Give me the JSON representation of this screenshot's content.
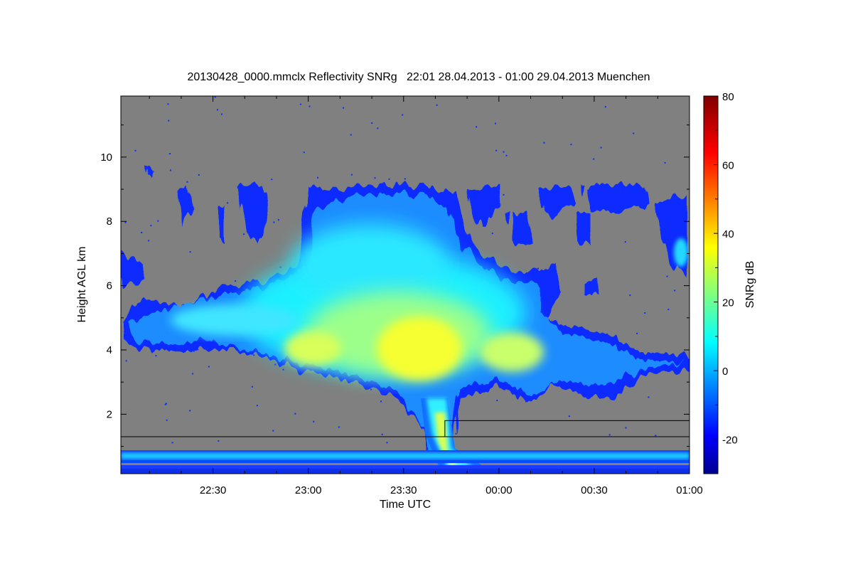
{
  "chart_data": {
    "type": "heatmap",
    "title": "20130428_0000.mmclx Reflectivity SNRg   22:01 28.04.2013 - 01:00 29.04.2013 Muenchen",
    "xlabel": "Time UTC",
    "ylabel": "Height AGL km",
    "colorbar_label": "SNRg dB",
    "x_range": [
      "22:01",
      "01:00"
    ],
    "x_ticks": [
      {
        "label": "22:30",
        "minutes": 30
      },
      {
        "label": "23:00",
        "minutes": 60
      },
      {
        "label": "23:30",
        "minutes": 90
      },
      {
        "label": "00:00",
        "minutes": 120
      },
      {
        "label": "00:30",
        "minutes": 150
      },
      {
        "label": "01:00",
        "minutes": 180
      }
    ],
    "y_range": [
      0.15,
      11.9
    ],
    "y_ticks": [
      2,
      4,
      6,
      8,
      10
    ],
    "colorbar_range": [
      -30,
      80
    ],
    "colorbar_ticks": [
      -20,
      0,
      20,
      40,
      60,
      80
    ],
    "colormap": [
      "#00008f",
      "#0000ff",
      "#00ffff",
      "#ffff00",
      "#ff0000",
      "#800000"
    ],
    "background_color": "#808080",
    "overlay_lines_km": [
      1.3,
      1.8
    ],
    "grid": false
  }
}
